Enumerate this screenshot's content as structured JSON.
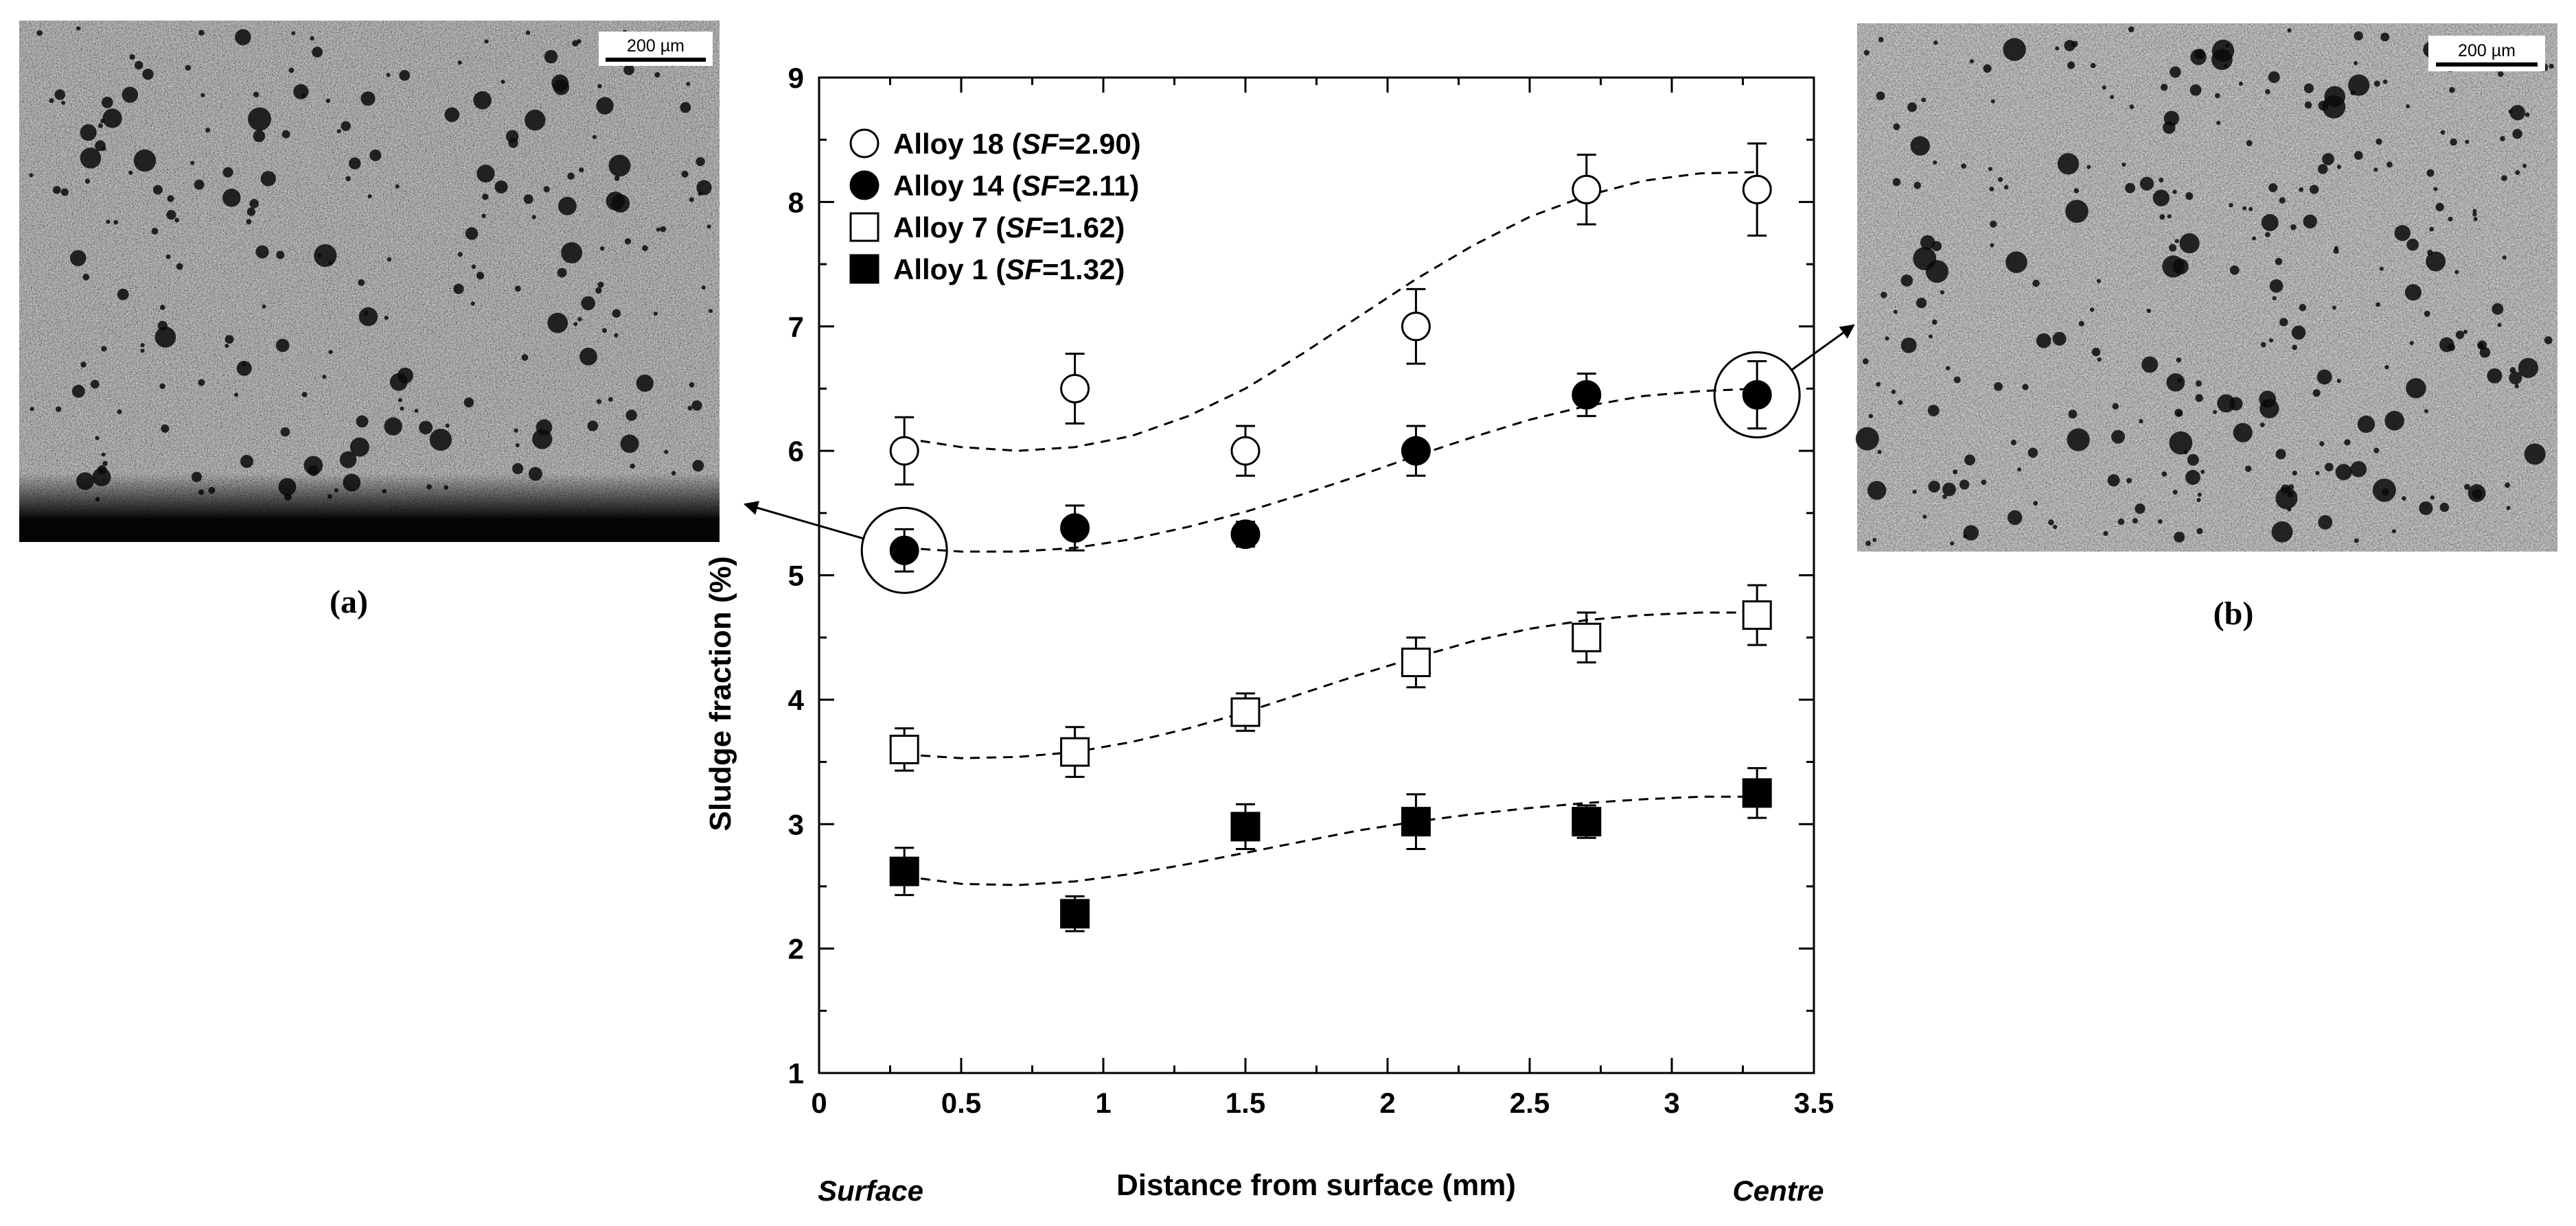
{
  "figure": {
    "panel_a": {
      "caption": "(a)",
      "scale_bar_label": "200 µm"
    },
    "panel_b": {
      "caption": "(b)",
      "scale_bar_label": "200 µm"
    }
  },
  "colors": {
    "ink": "#000000",
    "background": "#ffffff",
    "micrograph_base": "#8c8c8c"
  },
  "chart_data": {
    "type": "scatter",
    "title": "",
    "xlabel": "Distance from surface (mm)",
    "ylabel": "Sludge fraction (%)",
    "xlim": [
      0,
      3.5
    ],
    "ylim": [
      1,
      9
    ],
    "xticks": [
      0,
      0.5,
      1,
      1.5,
      2,
      2.5,
      3,
      3.5
    ],
    "xtick_labels": [
      "0",
      "0.5",
      "1",
      "1.5",
      "2",
      "2.5",
      "3",
      "3.5"
    ],
    "yticks": [
      1,
      2,
      3,
      4,
      5,
      6,
      7,
      8,
      9
    ],
    "ytick_labels": [
      "1",
      "2",
      "3",
      "4",
      "5",
      "6",
      "7",
      "8",
      "9"
    ],
    "x_end_labels": {
      "left": "Surface",
      "right": "Centre"
    },
    "legend_position": "top-left",
    "x": [
      0.3,
      0.9,
      1.5,
      2.1,
      2.7,
      3.3
    ],
    "series": [
      {
        "name": "Alloy 18",
        "sf_label": "SF",
        "sf_value": "=2.90",
        "marker": "circle-open",
        "values": [
          6.0,
          6.5,
          6.0,
          7.0,
          8.1,
          8.1
        ],
        "errors": [
          0.27,
          0.28,
          0.2,
          0.3,
          0.28,
          0.37
        ],
        "trend": [
          [
            0.3,
            6.1
          ],
          [
            0.5,
            6.03
          ],
          [
            0.7,
            6.0
          ],
          [
            0.9,
            6.03
          ],
          [
            1.1,
            6.12
          ],
          [
            1.3,
            6.28
          ],
          [
            1.5,
            6.5
          ],
          [
            1.7,
            6.78
          ],
          [
            1.9,
            7.08
          ],
          [
            2.1,
            7.38
          ],
          [
            2.3,
            7.65
          ],
          [
            2.5,
            7.88
          ],
          [
            2.7,
            8.05
          ],
          [
            2.9,
            8.17
          ],
          [
            3.1,
            8.23
          ],
          [
            3.3,
            8.24
          ]
        ]
      },
      {
        "name": "Alloy 14",
        "sf_label": "SF",
        "sf_value": "=2.11",
        "marker": "circle-filled",
        "values": [
          5.2,
          5.38,
          5.33,
          6.0,
          6.45,
          6.45
        ],
        "errors": [
          0.17,
          0.18,
          0.1,
          0.2,
          0.17,
          0.27
        ],
        "trend": [
          [
            0.3,
            5.22
          ],
          [
            0.5,
            5.19
          ],
          [
            0.7,
            5.19
          ],
          [
            0.9,
            5.22
          ],
          [
            1.1,
            5.29
          ],
          [
            1.3,
            5.39
          ],
          [
            1.5,
            5.51
          ],
          [
            1.7,
            5.65
          ],
          [
            1.9,
            5.8
          ],
          [
            2.1,
            5.96
          ],
          [
            2.3,
            6.11
          ],
          [
            2.5,
            6.25
          ],
          [
            2.7,
            6.36
          ],
          [
            2.9,
            6.44
          ],
          [
            3.1,
            6.48
          ],
          [
            3.3,
            6.5
          ]
        ]
      },
      {
        "name": "Alloy 7",
        "sf_label": "SF",
        "sf_value": "=1.62",
        "marker": "square-open",
        "values": [
          3.6,
          3.58,
          3.9,
          4.3,
          4.5,
          4.68
        ],
        "errors": [
          0.17,
          0.2,
          0.15,
          0.2,
          0.2,
          0.24
        ],
        "trend": [
          [
            0.3,
            3.56
          ],
          [
            0.5,
            3.53
          ],
          [
            0.7,
            3.54
          ],
          [
            0.9,
            3.58
          ],
          [
            1.1,
            3.66
          ],
          [
            1.3,
            3.77
          ],
          [
            1.5,
            3.9
          ],
          [
            1.7,
            4.05
          ],
          [
            1.9,
            4.2
          ],
          [
            2.1,
            4.34
          ],
          [
            2.3,
            4.47
          ],
          [
            2.5,
            4.57
          ],
          [
            2.7,
            4.64
          ],
          [
            2.9,
            4.68
          ],
          [
            3.1,
            4.7
          ],
          [
            3.3,
            4.7
          ]
        ]
      },
      {
        "name": "Alloy 1",
        "sf_label": "SF",
        "sf_value": "=1.32",
        "marker": "square-filled",
        "values": [
          2.62,
          2.28,
          2.98,
          3.02,
          3.02,
          3.25
        ],
        "errors": [
          0.19,
          0.14,
          0.18,
          0.22,
          0.13,
          0.2
        ],
        "trend": [
          [
            0.3,
            2.58
          ],
          [
            0.5,
            2.52
          ],
          [
            0.7,
            2.51
          ],
          [
            0.9,
            2.54
          ],
          [
            1.1,
            2.6
          ],
          [
            1.3,
            2.68
          ],
          [
            1.5,
            2.77
          ],
          [
            1.7,
            2.86
          ],
          [
            1.9,
            2.95
          ],
          [
            2.1,
            3.02
          ],
          [
            2.3,
            3.08
          ],
          [
            2.5,
            3.13
          ],
          [
            2.7,
            3.17
          ],
          [
            2.9,
            3.2
          ],
          [
            3.1,
            3.22
          ],
          [
            3.3,
            3.22
          ]
        ]
      }
    ],
    "highlights": [
      {
        "series": "Alloy 14",
        "x": 0.3,
        "y": 5.2,
        "links_to": "(a)"
      },
      {
        "series": "Alloy 14",
        "x": 3.3,
        "y": 6.45,
        "links_to": "(b)"
      }
    ]
  }
}
